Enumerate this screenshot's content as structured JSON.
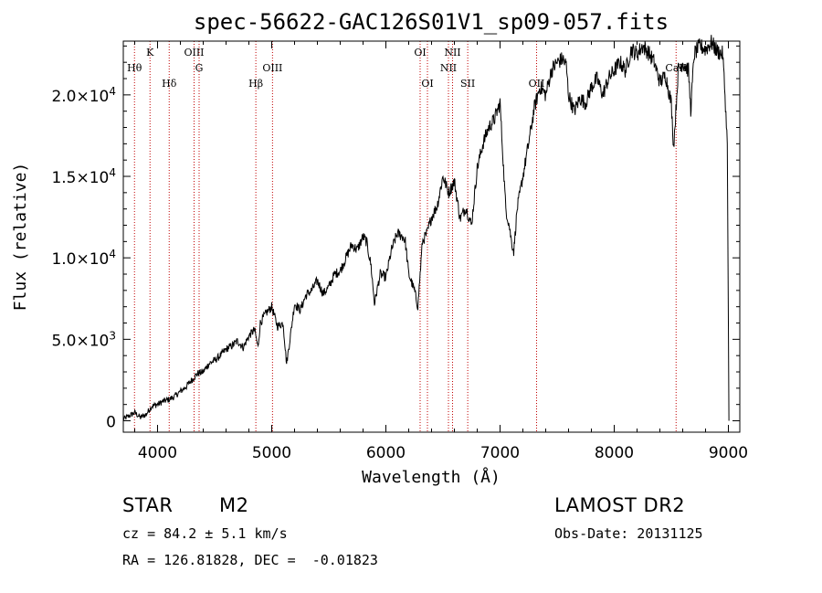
{
  "chart_data": {
    "type": "line",
    "title": "spec-56622-GAC126S01V1_sp09-057.fits",
    "xlabel": "Wavelength (Å)",
    "ylabel": "Flux (relative)",
    "xlim": [
      3700,
      9100
    ],
    "ylim": [
      -700,
      23300
    ],
    "x_ticks": [
      {
        "value": 4000,
        "label": "4000"
      },
      {
        "value": 5000,
        "label": "5000"
      },
      {
        "value": 6000,
        "label": "6000"
      },
      {
        "value": 7000,
        "label": "7000"
      },
      {
        "value": 8000,
        "label": "8000"
      },
      {
        "value": 9000,
        "label": "9000"
      }
    ],
    "y_ticks": [
      {
        "value": 0,
        "mant": "0",
        "exp": ""
      },
      {
        "value": 5000,
        "mant": "5.0×10",
        "exp": "3"
      },
      {
        "value": 10000,
        "mant": "1.0×10",
        "exp": "4"
      },
      {
        "value": 15000,
        "mant": "1.5×10",
        "exp": "4"
      },
      {
        "value": 20000,
        "mant": "2.0×10",
        "exp": "4"
      }
    ],
    "lines": [
      {
        "label": "Hθ",
        "x": 3798,
        "row": 2
      },
      {
        "label": "K",
        "x": 3934,
        "row": 0
      },
      {
        "label": "Hδ",
        "x": 4102,
        "row": 3
      },
      {
        "label": "OIII",
        "x": 4320,
        "row": 0
      },
      {
        "label": "G",
        "x": 4364,
        "row": 2
      },
      {
        "label": "Hβ",
        "x": 4861,
        "row": 3
      },
      {
        "label": "OIII",
        "x": 5007,
        "row": 2
      },
      {
        "label": "OI",
        "x": 6300,
        "row": 0
      },
      {
        "label": "OI",
        "x": 6364,
        "row": 3
      },
      {
        "label": "NII",
        "x": 6548,
        "row": 2
      },
      {
        "label": "NII",
        "x": 6584,
        "row": 0
      },
      {
        "label": "SII",
        "x": 6717,
        "row": 3
      },
      {
        "label": "OII",
        "x": 7320,
        "row": 3
      },
      {
        "label": "CaII",
        "x": 8542,
        "row": 2
      }
    ],
    "spectrum": {
      "x": [
        3700,
        3750,
        3800,
        3850,
        3900,
        3950,
        4000,
        4050,
        4100,
        4150,
        4200,
        4250,
        4300,
        4350,
        4400,
        4450,
        4500,
        4550,
        4600,
        4650,
        4700,
        4750,
        4800,
        4850,
        4880,
        4900,
        4950,
        5000,
        5050,
        5100,
        5130,
        5160,
        5200,
        5250,
        5300,
        5350,
        5400,
        5450,
        5500,
        5550,
        5600,
        5650,
        5700,
        5750,
        5800,
        5830,
        5870,
        5900,
        5950,
        6000,
        6050,
        6100,
        6150,
        6170,
        6200,
        6250,
        6280,
        6320,
        6360,
        6400,
        6450,
        6500,
        6550,
        6600,
        6650,
        6700,
        6750,
        6800,
        6850,
        6900,
        6950,
        7000,
        7050,
        7080,
        7100,
        7120,
        7150,
        7200,
        7250,
        7300,
        7350,
        7400,
        7450,
        7500,
        7550,
        7580,
        7600,
        7650,
        7700,
        7750,
        7800,
        7850,
        7900,
        7950,
        8000,
        8050,
        8100,
        8150,
        8200,
        8250,
        8300,
        8350,
        8400,
        8450,
        8500,
        8520,
        8540,
        8560,
        8600,
        8650,
        8670,
        8700,
        8750,
        8800,
        8850,
        8900,
        8950,
        8970,
        8990,
        9000,
        9005
      ],
      "y": [
        100,
        300,
        500,
        200,
        400,
        900,
        1000,
        1200,
        1300,
        1500,
        1800,
        2100,
        2500,
        2900,
        3000,
        3500,
        3700,
        4000,
        4400,
        4600,
        4900,
        4500,
        5200,
        5600,
        4500,
        6000,
        6600,
        7000,
        5800,
        6000,
        3500,
        5000,
        7200,
        6800,
        7700,
        8000,
        8600,
        7800,
        8200,
        9000,
        9200,
        10000,
        10800,
        10500,
        11300,
        11000,
        9500,
        7200,
        9000,
        8800,
        10500,
        11500,
        11300,
        11000,
        9000,
        8000,
        7000,
        11000,
        11500,
        12500,
        13200,
        15000,
        14000,
        14700,
        12400,
        13100,
        12000,
        15500,
        17000,
        18000,
        18500,
        19500,
        13000,
        12000,
        11000,
        10400,
        13000,
        15000,
        17000,
        19200,
        20500,
        20000,
        21500,
        22000,
        22200,
        21800,
        20000,
        19000,
        19800,
        19500,
        20500,
        21000,
        20000,
        21000,
        21500,
        22000,
        21500,
        22800,
        22500,
        23000,
        22600,
        22000,
        20800,
        21200,
        19500,
        16800,
        19000,
        21500,
        22000,
        21500,
        19000,
        22500,
        23000,
        22800,
        23200,
        22700,
        22500,
        20000,
        17000,
        6000,
        0
      ]
    }
  },
  "info": {
    "class_label": "STAR",
    "subclass": "M2",
    "cz_text": "cz = 84.2 ± 5.1 km/s",
    "survey": "LAMOST DR2",
    "obs_date": "Obs-Date: 20131125",
    "coords": "RA = 126.81828, DEC =  -0.01823"
  }
}
